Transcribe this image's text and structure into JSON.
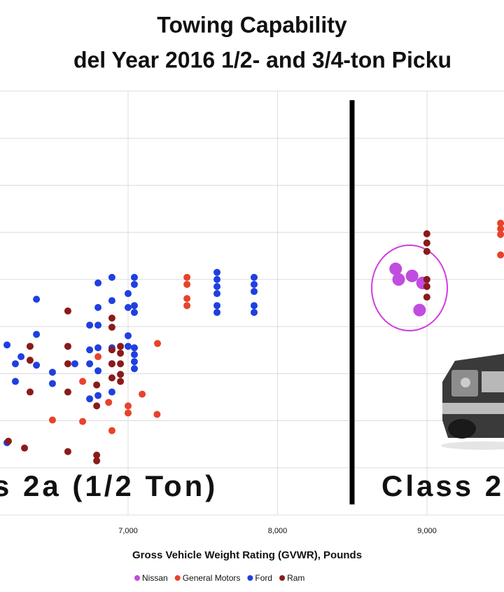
{
  "chart_data": {
    "type": "scatter",
    "title": "Towing Capability",
    "subtitle": "del Year 2016 1/2- and 3/4-ton Picku",
    "x_label": "Gross Vehicle Weight Rating (GVWR), Pounds",
    "annotations": [
      "s 2a (1/2 Ton)",
      "Class 2"
    ],
    "xlim": [
      6143,
      9515
    ],
    "xticks": [
      {
        "value": 7000,
        "label": "7,000"
      },
      {
        "value": 8000,
        "label": "8,000"
      },
      {
        "value": 9000,
        "label": "9,000"
      }
    ],
    "ylim": [
      2000,
      20000
    ],
    "yticks": [
      2000,
      4000,
      6000,
      8000,
      10000,
      12000,
      14000,
      16000,
      18000,
      20000
    ],
    "grid": true,
    "series": [
      {
        "name": "Nissan",
        "color": "#c04ce0",
        "size": 9,
        "x": [
          8790,
          8810,
          8900,
          8970,
          8950
        ],
        "values": [
          12450,
          12000,
          12150,
          11850,
          10700
        ]
      },
      {
        "name": "General Motors",
        "color": "#e8432a",
        "size": 5,
        "x": [
          7394,
          7394,
          7394,
          7394,
          7197,
          7000,
          7000,
          7194,
          6892,
          6696,
          6494,
          7094,
          6870,
          6696,
          6799,
          9492,
          9492,
          9492,
          9492
        ],
        "values": [
          12090,
          11790,
          11190,
          10890,
          9280,
          6630,
          6330,
          6270,
          5580,
          5970,
          6030,
          7130,
          6780,
          7670,
          8720,
          14390,
          14150,
          13910,
          13040
        ]
      },
      {
        "name": "Ford",
        "color": "#1f3fe0",
        "size": 5,
        "x": [
          7595,
          7595,
          7595,
          7595,
          7595,
          7595,
          7843,
          7843,
          7843,
          7843,
          7843,
          7042,
          7042,
          7042,
          7042,
          7042,
          7042,
          7042,
          7042,
          7000,
          7000,
          7000,
          7000,
          6892,
          6892,
          6892,
          6892,
          6892,
          6799,
          6799,
          6799,
          6799,
          6799,
          6799,
          6743,
          6743,
          6743,
          6743,
          6644,
          6494,
          6494,
          6387,
          6387,
          6387,
          6284,
          6246,
          6246,
          6190,
          6190
        ],
        "values": [
          12300,
          12000,
          11700,
          11400,
          10890,
          10600,
          12090,
          11790,
          11490,
          10890,
          10600,
          12090,
          11790,
          10890,
          10600,
          9100,
          8810,
          8510,
          8210,
          11400,
          10810,
          9610,
          9160,
          12090,
          11100,
          9100,
          8420,
          7220,
          11850,
          10810,
          10060,
          9100,
          8120,
          7070,
          10060,
          9010,
          8420,
          6930,
          8420,
          8060,
          7580,
          11160,
          9670,
          8360,
          8720,
          8420,
          7670,
          9220,
          5070
        ]
      },
      {
        "name": "Ram",
        "color": "#8b1a1a",
        "size": 5,
        "x": [
          8999,
          8999,
          8999,
          8999,
          8999,
          8999,
          6892,
          6892,
          6892,
          6892,
          6892,
          6949,
          6949,
          6949,
          6949,
          6949,
          6790,
          6790,
          6790,
          6790,
          6597,
          6597,
          6597,
          6597,
          6597,
          6344,
          6344,
          6344,
          6307,
          6199
        ],
        "values": [
          13940,
          13550,
          13190,
          12000,
          11700,
          11250,
          10360,
          9970,
          9010,
          8420,
          7820,
          9160,
          8870,
          8420,
          7970,
          7670,
          7520,
          6630,
          4540,
          4300,
          10660,
          9160,
          8420,
          7220,
          4690,
          9160,
          8570,
          7220,
          4840,
          5130
        ]
      }
    ]
  }
}
